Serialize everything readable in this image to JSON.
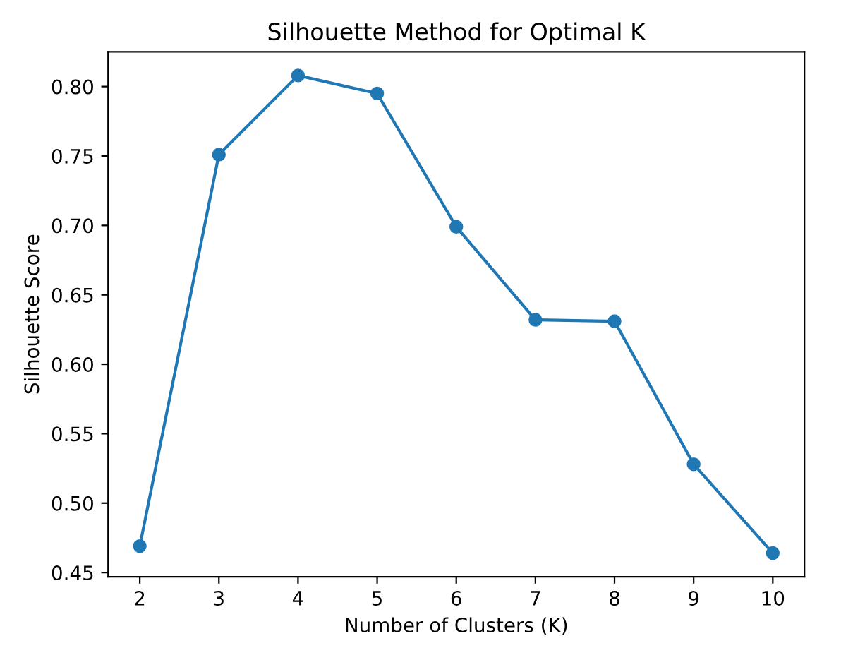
{
  "chart_data": {
    "type": "line",
    "title": "Silhouette Method for Optimal K",
    "xlabel": "Number of Clusters (K)",
    "ylabel": "Silhouette Score",
    "x": [
      2,
      3,
      4,
      5,
      6,
      7,
      8,
      9,
      10
    ],
    "series": [
      {
        "color": "#1f77b4",
        "values": [
          0.469,
          0.751,
          0.808,
          0.795,
          0.699,
          0.632,
          0.631,
          0.528,
          0.464
        ]
      }
    ],
    "xlim": [
      1.6,
      10.4
    ],
    "xticks": [
      2,
      3,
      4,
      5,
      6,
      7,
      8,
      9,
      10
    ],
    "ylim": [
      0.447,
      0.825
    ],
    "yticks": [
      {
        "value": 0.45,
        "label": "0.45"
      },
      {
        "value": 0.5,
        "label": "0.50"
      },
      {
        "value": 0.55,
        "label": "0.55"
      },
      {
        "value": 0.6,
        "label": "0.60"
      },
      {
        "value": 0.65,
        "label": "0.65"
      },
      {
        "value": 0.7,
        "label": "0.70"
      },
      {
        "value": 0.75,
        "label": "0.75"
      },
      {
        "value": 0.8,
        "label": "0.80"
      }
    ],
    "marker": "circle",
    "line_style": "solid",
    "grid": false,
    "legend": false
  }
}
